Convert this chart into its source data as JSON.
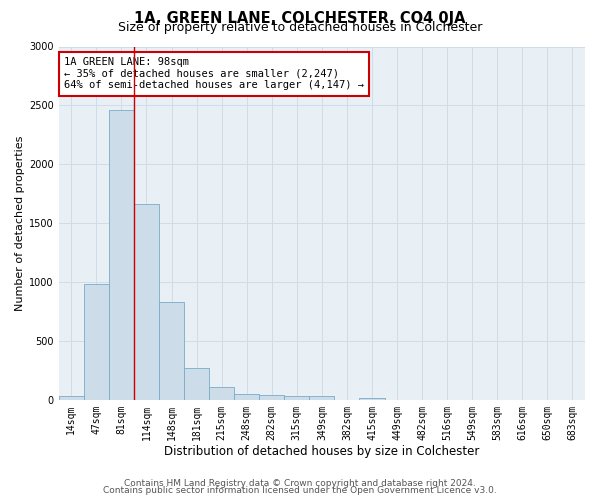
{
  "title": "1A, GREEN LANE, COLCHESTER, CO4 0JA",
  "subtitle": "Size of property relative to detached houses in Colchester",
  "xlabel": "Distribution of detached houses by size in Colchester",
  "ylabel": "Number of detached properties",
  "categories": [
    "14sqm",
    "47sqm",
    "81sqm",
    "114sqm",
    "148sqm",
    "181sqm",
    "215sqm",
    "248sqm",
    "282sqm",
    "315sqm",
    "349sqm",
    "382sqm",
    "415sqm",
    "449sqm",
    "482sqm",
    "516sqm",
    "549sqm",
    "583sqm",
    "616sqm",
    "650sqm",
    "683sqm"
  ],
  "values": [
    40,
    985,
    2460,
    1660,
    830,
    270,
    115,
    50,
    45,
    40,
    35,
    0,
    20,
    0,
    0,
    0,
    0,
    0,
    0,
    0,
    0
  ],
  "bar_color": "#ccdce8",
  "bar_edge_color": "#7aaac8",
  "vline_color": "#cc0000",
  "vline_xindex": 2.5,
  "annotation_text": "1A GREEN LANE: 98sqm\n← 35% of detached houses are smaller (2,247)\n64% of semi-detached houses are larger (4,147) →",
  "annotation_box_facecolor": "#ffffff",
  "annotation_box_edgecolor": "#cc0000",
  "ylim": [
    0,
    3000
  ],
  "yticks": [
    0,
    500,
    1000,
    1500,
    2000,
    2500,
    3000
  ],
  "grid_color": "#d0dce8",
  "background_color": "#ffffff",
  "plot_bg_color": "#e8eff5",
  "footer_line1": "Contains HM Land Registry data © Crown copyright and database right 2024.",
  "footer_line2": "Contains public sector information licensed under the Open Government Licence v3.0.",
  "title_fontsize": 10.5,
  "subtitle_fontsize": 9,
  "xlabel_fontsize": 8.5,
  "ylabel_fontsize": 8,
  "tick_fontsize": 7,
  "footer_fontsize": 6.5,
  "annotation_fontsize": 7.5
}
